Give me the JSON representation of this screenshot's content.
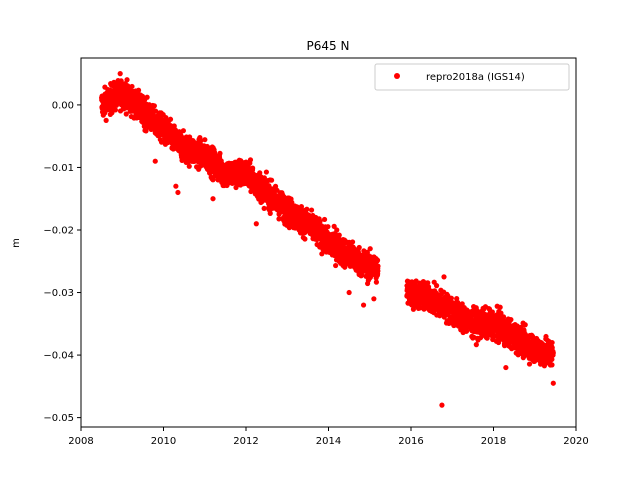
{
  "chart_data": {
    "type": "scatter",
    "title": "P645 N",
    "xlabel": "",
    "ylabel": "m",
    "xlim": [
      2008.0,
      2020.0
    ],
    "ylim": [
      -0.0515,
      0.0075
    ],
    "xticks": [
      2008,
      2010,
      2012,
      2014,
      2016,
      2018,
      2020
    ],
    "yticks": [
      0.0,
      -0.01,
      -0.02,
      -0.03,
      -0.04,
      -0.05
    ],
    "ytick_labels": [
      "0.00",
      "−0.01",
      "−0.02",
      "−0.03",
      "−0.04",
      "−0.05"
    ],
    "grid": false,
    "legend_position": "top-right",
    "series": [
      {
        "name": "repro2018a (IGS14)",
        "color": "#ff0000",
        "marker": "circle",
        "trend_points": [
          {
            "x": 2008.5,
            "y": 0.0
          },
          {
            "x": 2009.0,
            "y": 0.002
          },
          {
            "x": 2009.5,
            "y": -0.001
          },
          {
            "x": 2010.0,
            "y": -0.004
          },
          {
            "x": 2010.5,
            "y": -0.007
          },
          {
            "x": 2011.0,
            "y": -0.008
          },
          {
            "x": 2011.5,
            "y": -0.011
          },
          {
            "x": 2012.0,
            "y": -0.011
          },
          {
            "x": 2012.5,
            "y": -0.014
          },
          {
            "x": 2013.0,
            "y": -0.017
          },
          {
            "x": 2013.5,
            "y": -0.019
          },
          {
            "x": 2014.0,
            "y": -0.022
          },
          {
            "x": 2014.5,
            "y": -0.024
          },
          {
            "x": 2015.0,
            "y": -0.026
          },
          {
            "x": 2015.2,
            "y": -0.026
          },
          {
            "x": 2015.9,
            "y": -0.03
          },
          {
            "x": 2016.5,
            "y": -0.031
          },
          {
            "x": 2017.0,
            "y": -0.033
          },
          {
            "x": 2017.5,
            "y": -0.035
          },
          {
            "x": 2018.0,
            "y": -0.035
          },
          {
            "x": 2018.5,
            "y": -0.037
          },
          {
            "x": 2019.0,
            "y": -0.039
          },
          {
            "x": 2019.45,
            "y": -0.04
          }
        ],
        "outliers": [
          {
            "x": 2008.95,
            "y": 0.005
          },
          {
            "x": 2009.8,
            "y": -0.009
          },
          {
            "x": 2010.3,
            "y": -0.013
          },
          {
            "x": 2010.35,
            "y": -0.014
          },
          {
            "x": 2011.2,
            "y": -0.015
          },
          {
            "x": 2012.25,
            "y": -0.019
          },
          {
            "x": 2014.2,
            "y": -0.02
          },
          {
            "x": 2014.5,
            "y": -0.03
          },
          {
            "x": 2014.85,
            "y": -0.032
          },
          {
            "x": 2015.1,
            "y": -0.031
          },
          {
            "x": 2016.8,
            "y": -0.0275
          },
          {
            "x": 2016.75,
            "y": -0.048
          },
          {
            "x": 2018.3,
            "y": -0.042
          },
          {
            "x": 2019.45,
            "y": -0.0445
          }
        ]
      }
    ]
  }
}
